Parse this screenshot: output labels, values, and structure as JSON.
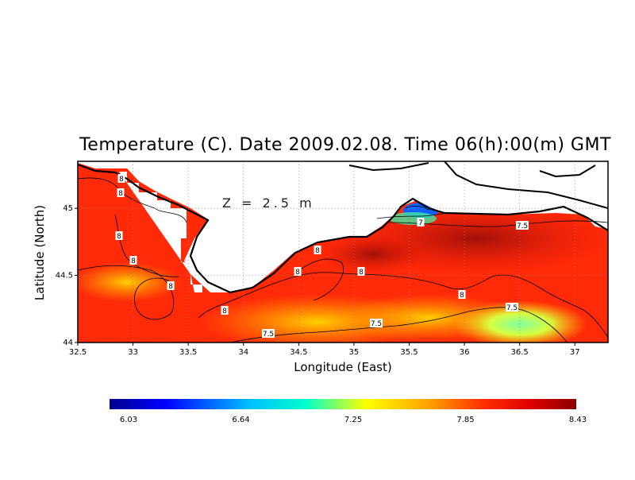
{
  "title": "Temperature (C). Date 2009.02.08. Time 06(h):00(m) GMT",
  "depth_label": "Z = 2.5 m",
  "xlabel": "Longitude (East)",
  "ylabel": "Latitude (North)",
  "x_ticks": [
    "32.5",
    "33",
    "33.5",
    "34",
    "34.5",
    "35",
    "35.5",
    "36",
    "36.5",
    "37"
  ],
  "y_ticks": [
    "44",
    "44.5",
    "45"
  ],
  "colorbar_ticks": [
    "6.03",
    "6.64",
    "7.25",
    "7.85",
    "8.43"
  ],
  "contour_labels": [
    "8",
    "8",
    "8",
    "8",
    "8",
    "8",
    "8",
    "8",
    "8",
    "8",
    "7.5",
    "7.5",
    "7.5",
    "7.5",
    "7"
  ],
  "colors": {
    "scale": [
      "#00008b",
      "#0000ff",
      "#00bfff",
      "#00ffd0",
      "#ffff00",
      "#ffa500",
      "#ff3000",
      "#ff0000",
      "#8b0000"
    ],
    "land": "#ffffff",
    "coast": "#000000"
  },
  "chart_data": {
    "type": "heatmap",
    "title": "Temperature (C). Date 2009.02.08. Time 06(h):00(m) GMT",
    "xlabel": "Longitude (East)",
    "ylabel": "Latitude (North)",
    "xlim": [
      32.5,
      37.3
    ],
    "ylim": [
      44.0,
      45.35
    ],
    "value_range": [
      6.03,
      8.43
    ],
    "contour_levels": [
      7,
      7.5,
      8
    ],
    "grid": true
  }
}
